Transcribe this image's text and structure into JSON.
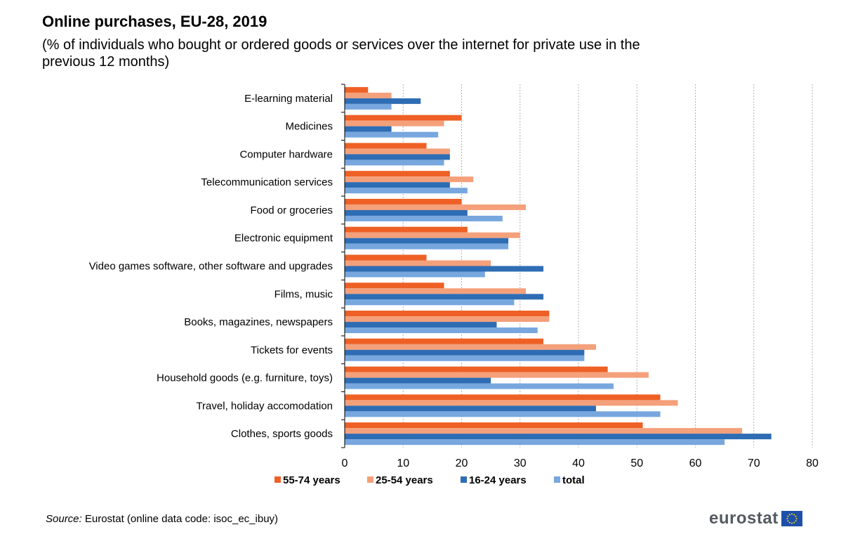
{
  "title": "Online purchases, EU-28, 2019",
  "subtitle": "(% of individuals who bought or ordered goods or services over the internet for private use in the previous 12 months)",
  "source": {
    "label": "Source:",
    "text": " Eurostat (online data code: isoc_ec_ibuy)"
  },
  "logo": {
    "text": "eurostat"
  },
  "colors": {
    "55-74 years": "#ee6025",
    "25-54 years": "#f4a07b",
    "16-24 years": "#2e6db4",
    "total": "#77a7de"
  },
  "chart_data": {
    "type": "bar",
    "orientation": "horizontal",
    "categories": [
      "E-learning material",
      "Medicines",
      "Computer hardware",
      "Telecommunication services",
      "Food or groceries",
      "Electronic equipment",
      "Video games software, other software and upgrades",
      "Films, music",
      "Books, magazines, newspapers",
      "Tickets for events",
      "Household goods (e.g. furniture, toys)",
      "Travel, holiday accomodation",
      "Clothes, sports goods"
    ],
    "series": [
      {
        "name": "55-74 years",
        "values": [
          4,
          20,
          14,
          18,
          20,
          21,
          14,
          17,
          35,
          34,
          45,
          54,
          51
        ]
      },
      {
        "name": "25-54 years",
        "values": [
          8,
          17,
          18,
          22,
          31,
          30,
          25,
          31,
          35,
          43,
          52,
          57,
          68
        ]
      },
      {
        "name": "16-24 years",
        "values": [
          13,
          8,
          18,
          18,
          21,
          28,
          34,
          34,
          26,
          41,
          25,
          43,
          73
        ]
      },
      {
        "name": "total",
        "values": [
          8,
          16,
          17,
          21,
          27,
          28,
          24,
          29,
          33,
          41,
          46,
          54,
          65
        ]
      }
    ],
    "xlim": [
      0,
      80
    ],
    "xticks": [
      "0",
      "10",
      "20",
      "30",
      "40",
      "50",
      "60",
      "70",
      "80"
    ],
    "grid": "vertical dashed",
    "legend": "bottom"
  }
}
